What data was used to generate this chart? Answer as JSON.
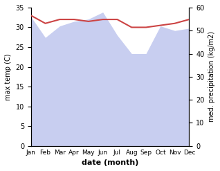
{
  "months": [
    "Jan",
    "Feb",
    "Mar",
    "Apr",
    "May",
    "Jun",
    "Jul",
    "Aug",
    "Sep",
    "Oct",
    "Nov",
    "Dec"
  ],
  "temp": [
    33,
    31,
    32,
    32,
    31.5,
    32,
    32,
    30,
    30,
    30.5,
    31,
    32
  ],
  "precip": [
    56,
    47,
    52,
    54,
    55,
    58,
    48,
    40,
    40,
    52,
    50,
    51
  ],
  "temp_color": "#cc4444",
  "precip_fill_color": "#c8cef0",
  "xlabel": "date (month)",
  "ylabel_left": "max temp (C)",
  "ylabel_right": "med. precipitation (kg/m2)",
  "ylim_left": [
    0,
    35
  ],
  "ylim_right": [
    0,
    60
  ],
  "yticks_left": [
    0,
    5,
    10,
    15,
    20,
    25,
    30,
    35
  ],
  "yticks_right": [
    0,
    10,
    20,
    30,
    40,
    50,
    60
  ],
  "background_color": "#ffffff"
}
